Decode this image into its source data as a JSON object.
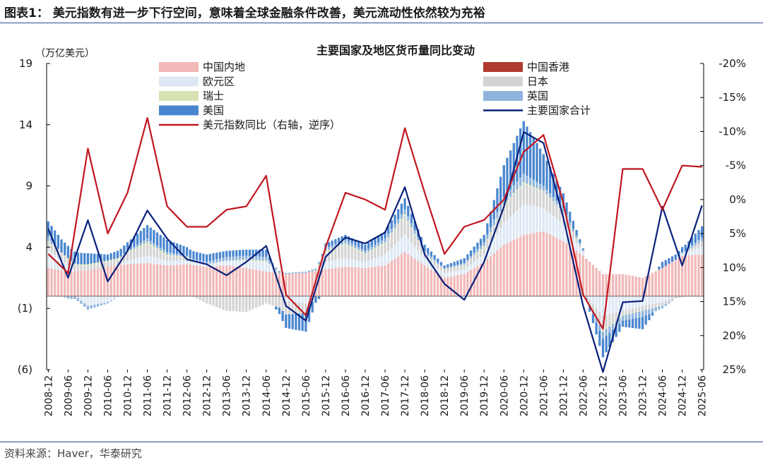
{
  "figure_title": "图表1： 美元指数有进一步下行空间，意味着全球金融条件改善，美元流动性依然较为充裕",
  "source": "资料来源：Haver，华泰研究",
  "chart_data": {
    "type": "bar",
    "title": "主要国家及地区货币量同比变动",
    "ylabel": "（万亿美元）",
    "ylim": [
      -6,
      19
    ],
    "y_ticks": [
      19,
      14,
      9,
      4,
      -1,
      -6
    ],
    "y_tick_labels": [
      "19",
      "14",
      "9",
      "4",
      "(1)",
      "(6)"
    ],
    "y2lim": [
      25,
      -20
    ],
    "y2_ticks": [
      -20,
      -15,
      -10,
      -5,
      0,
      5,
      10,
      15,
      20,
      25
    ],
    "y2_tick_labels": [
      "-20%",
      "-15%",
      "-10%",
      "-5%",
      "0%",
      "5%",
      "10%",
      "15%",
      "20%",
      "25%"
    ],
    "x_tick_labels": [
      "2008-12",
      "2009-06",
      "2009-12",
      "2010-06",
      "2010-12",
      "2011-06",
      "2011-12",
      "2012-06",
      "2012-12",
      "2013-06",
      "2013-12",
      "2014-06",
      "2014-12",
      "2015-06",
      "2015-12",
      "2016-06",
      "2016-12",
      "2017-06",
      "2017-12",
      "2018-06",
      "2018-12",
      "2019-06",
      "2019-12",
      "2020-06",
      "2020-12",
      "2021-06",
      "2021-12",
      "2022-06",
      "2022-12",
      "2023-06",
      "2023-12",
      "2024-06",
      "2024-12",
      "2025-06"
    ],
    "legend": [
      {
        "label": "中国内地",
        "color": "#f2b8b8",
        "kind": "bar"
      },
      {
        "label": "中国香港",
        "color": "#b03a2e",
        "kind": "bar"
      },
      {
        "label": "欧元区",
        "color": "#dde8f4",
        "kind": "bar"
      },
      {
        "label": "日本",
        "color": "#d3d3d3",
        "kind": "bar"
      },
      {
        "label": "瑞士",
        "color": "#d6e2b4",
        "kind": "bar"
      },
      {
        "label": "英国",
        "color": "#8fb4dc",
        "kind": "bar"
      },
      {
        "label": "美国",
        "color": "#4a86cf",
        "kind": "bar"
      },
      {
        "label": "主要国家合计",
        "color": "#0a1f7a",
        "kind": "line"
      },
      {
        "label": "美元指数同比（右轴，逆序）",
        "color": "#c0161e",
        "kind": "line"
      }
    ],
    "series_anchor_note": "semi-annual anchor values; monthly values are linearly interpolated",
    "series": [
      {
        "name": "中国内地",
        "axis": "left",
        "color": "#f2b8b8",
        "values": [
          2.3,
          2.0,
          2.1,
          2.4,
          2.6,
          2.7,
          2.5,
          2.6,
          2.4,
          2.5,
          2.3,
          2.0,
          1.8,
          1.9,
          2.2,
          2.4,
          2.3,
          2.5,
          3.6,
          2.5,
          1.5,
          1.8,
          2.8,
          4.2,
          5.0,
          5.3,
          4.5,
          3.3,
          1.8,
          1.8,
          1.5,
          2.3,
          3.3,
          3.4
        ]
      },
      {
        "name": "欧元区",
        "axis": "left",
        "color": "#dde8f4",
        "values": [
          1.5,
          0.5,
          -0.8,
          -0.5,
          0.3,
          0.6,
          0.4,
          0.3,
          0.2,
          0.4,
          0.6,
          0.8,
          -0.4,
          -0.6,
          0.6,
          0.7,
          0.5,
          0.9,
          1.4,
          0.6,
          0.4,
          0.4,
          0.6,
          1.8,
          2.5,
          1.9,
          1.4,
          0.3,
          -1.6,
          -1.2,
          -0.8,
          -0.5,
          0.2,
          0.6
        ]
      },
      {
        "name": "日本",
        "axis": "left",
        "color": "#d3d3d3",
        "values": [
          0.6,
          0.5,
          0.4,
          0.4,
          0.6,
          0.9,
          0.4,
          0.2,
          -0.6,
          -1.2,
          -1.3,
          -0.6,
          -1.1,
          -0.8,
          0.8,
          1.1,
          0.6,
          0.9,
          1.6,
          0.4,
          0.3,
          0.4,
          0.6,
          1.4,
          1.7,
          1.3,
          1.0,
          0.1,
          -1.2,
          -0.3,
          -0.4,
          -0.3,
          -0.1,
          0.5
        ]
      },
      {
        "name": "瑞士",
        "axis": "left",
        "color": "#d6e2b4",
        "values": [
          0.1,
          0.1,
          0.1,
          0.1,
          0.1,
          0.2,
          0.1,
          0.1,
          0.0,
          0.0,
          0.1,
          0.1,
          0.0,
          0.0,
          0.1,
          0.1,
          0.1,
          0.1,
          0.1,
          0.0,
          0.0,
          0.0,
          0.1,
          0.1,
          0.1,
          0.1,
          0.0,
          0.0,
          -0.1,
          -0.1,
          0.0,
          0.0,
          0.0,
          0.0
        ]
      },
      {
        "name": "英国",
        "axis": "left",
        "color": "#8fb4dc",
        "values": [
          0.4,
          -0.2,
          -0.3,
          -0.1,
          0.1,
          0.3,
          0.2,
          0.1,
          0.2,
          0.3,
          0.3,
          0.3,
          0.1,
          0.1,
          0.2,
          0.3,
          0.2,
          0.3,
          0.4,
          0.2,
          0.1,
          0.1,
          0.3,
          0.6,
          0.7,
          0.4,
          0.3,
          0.1,
          -0.6,
          -0.4,
          -0.5,
          -0.2,
          0.1,
          0.3
        ]
      },
      {
        "name": "美国",
        "axis": "left",
        "color": "#4a86cf",
        "values": [
          1.2,
          1.0,
          0.9,
          0.5,
          0.7,
          1.1,
          1.0,
          0.7,
          0.6,
          0.5,
          0.5,
          0.6,
          -1.1,
          -1.5,
          0.4,
          0.4,
          0.5,
          0.6,
          0.9,
          0.5,
          0.2,
          0.4,
          0.6,
          2.6,
          4.3,
          2.6,
          1.2,
          0.1,
          -1.5,
          -0.5,
          -1.0,
          0.5,
          0.4,
          0.9
        ]
      },
      {
        "name": "中国香港",
        "axis": "left",
        "color": "#b03a2e",
        "values": [
          0,
          0,
          0,
          0,
          0,
          0,
          0,
          0,
          0,
          0,
          0,
          0,
          0,
          0,
          0,
          0,
          0,
          0,
          0,
          0,
          0,
          0,
          0,
          0,
          0,
          0,
          0,
          0,
          0,
          0,
          0,
          0,
          0,
          0
        ]
      },
      {
        "name": "主要国家合计",
        "axis": "left",
        "type": "line",
        "color": "#0a1f7a",
        "values": [
          5.5,
          1.5,
          6.2,
          1.2,
          3.7,
          7.0,
          4.7,
          3.0,
          2.6,
          1.7,
          2.8,
          4.1,
          -0.8,
          -2.0,
          3.2,
          4.8,
          4.3,
          5.2,
          8.9,
          3.4,
          1.0,
          -0.3,
          2.8,
          7.3,
          13.4,
          12.5,
          6.4,
          -0.8,
          -6.2,
          -0.5,
          -0.4,
          7.3,
          2.5,
          7.4
        ]
      },
      {
        "name": "美元指数同比（右轴，逆序）",
        "axis": "right",
        "type": "line",
        "color": "#c0161e",
        "values": [
          8.0,
          10.8,
          -7.5,
          5.0,
          -1.0,
          -12.0,
          1.0,
          4.0,
          4.0,
          1.5,
          1.0,
          -3.5,
          14.0,
          17.0,
          7.0,
          -1.0,
          0.0,
          1.5,
          -10.5,
          -1.0,
          8.0,
          4.0,
          3.0,
          0.0,
          -7.0,
          -9.5,
          0.5,
          14.0,
          19.0,
          -4.5,
          -4.5,
          1.5,
          -5.0,
          -4.8
        ]
      }
    ]
  }
}
